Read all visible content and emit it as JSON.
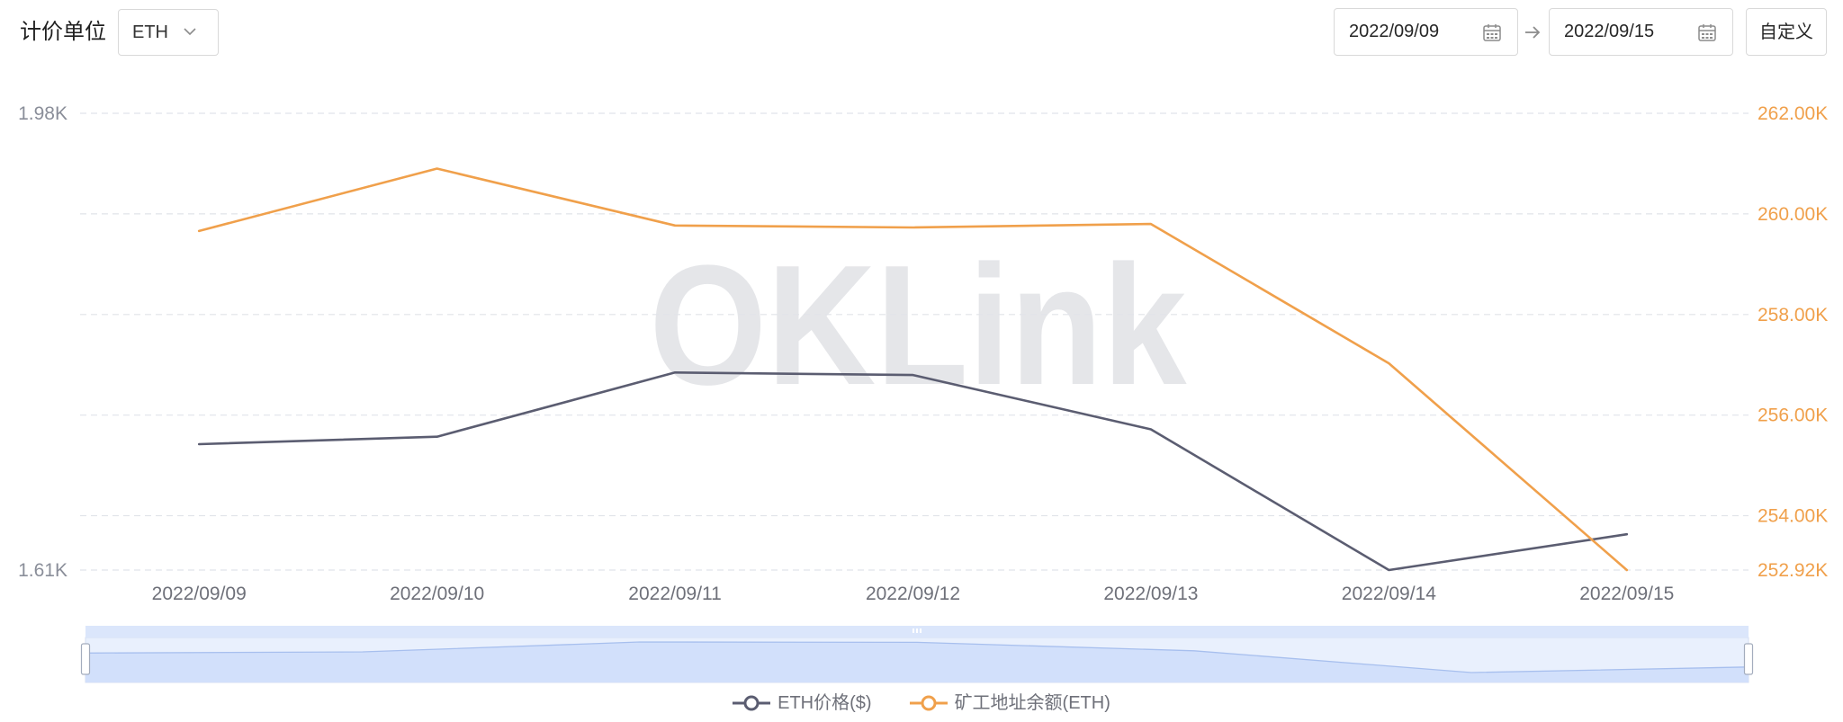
{
  "toolbar": {
    "unit_label": "计价单位",
    "unit_select": {
      "value": "ETH",
      "icon": "chevron-down-icon"
    },
    "date_range": {
      "start": "2022/09/09",
      "end": "2022/09/15",
      "icon": "calendar-icon",
      "separator_icon": "arrow-right-icon"
    },
    "custom_button": "自定义"
  },
  "watermark": "OKLink",
  "colors": {
    "right_axis_labels": "#f0a04b",
    "left_axis_labels": "#8a8e99",
    "x_axis_labels": "#6e7079",
    "gridline": "#e1e4e9",
    "zoom_fill": "#d2e0fb",
    "zoom_line": "#a7bfee"
  },
  "chart_data": {
    "type": "line",
    "categories": [
      "2022/09/09",
      "2022/09/10",
      "2022/09/11",
      "2022/09/12",
      "2022/09/13",
      "2022/09/14",
      "2022/09/15"
    ],
    "series": [
      {
        "name": "ETH价格($)",
        "y_axis_index": 0,
        "color": "#5b5d71",
        "values": [
          1712,
          1718,
          1770,
          1768,
          1724,
          1610,
          1639
        ]
      },
      {
        "name": "矿工地址余额(ETH)",
        "y_axis_index": 1,
        "color": "#f0a04b",
        "values": [
          259660,
          260900,
          259770,
          259730,
          259800,
          257030,
          252920
        ]
      }
    ],
    "y_left": {
      "min": 1610,
      "max": 1980,
      "ticks": [
        {
          "value": 1980,
          "label": "1.98K"
        },
        {
          "value": 1610,
          "label": "1.61K"
        }
      ]
    },
    "y_right": {
      "min": 252920,
      "max": 262000,
      "ticks": [
        {
          "value": 262000,
          "label": "262.00K"
        },
        {
          "value": 260000,
          "label": "260.00K"
        },
        {
          "value": 258000,
          "label": "258.00K"
        },
        {
          "value": 256000,
          "label": "256.00K"
        },
        {
          "value": 254000,
          "label": "254.00K"
        },
        {
          "value": 252920,
          "label": "252.92K"
        }
      ]
    },
    "grid": true,
    "legend": "bottom-center",
    "data_zoom": {
      "start_percent": 0,
      "end_percent": 100
    }
  }
}
